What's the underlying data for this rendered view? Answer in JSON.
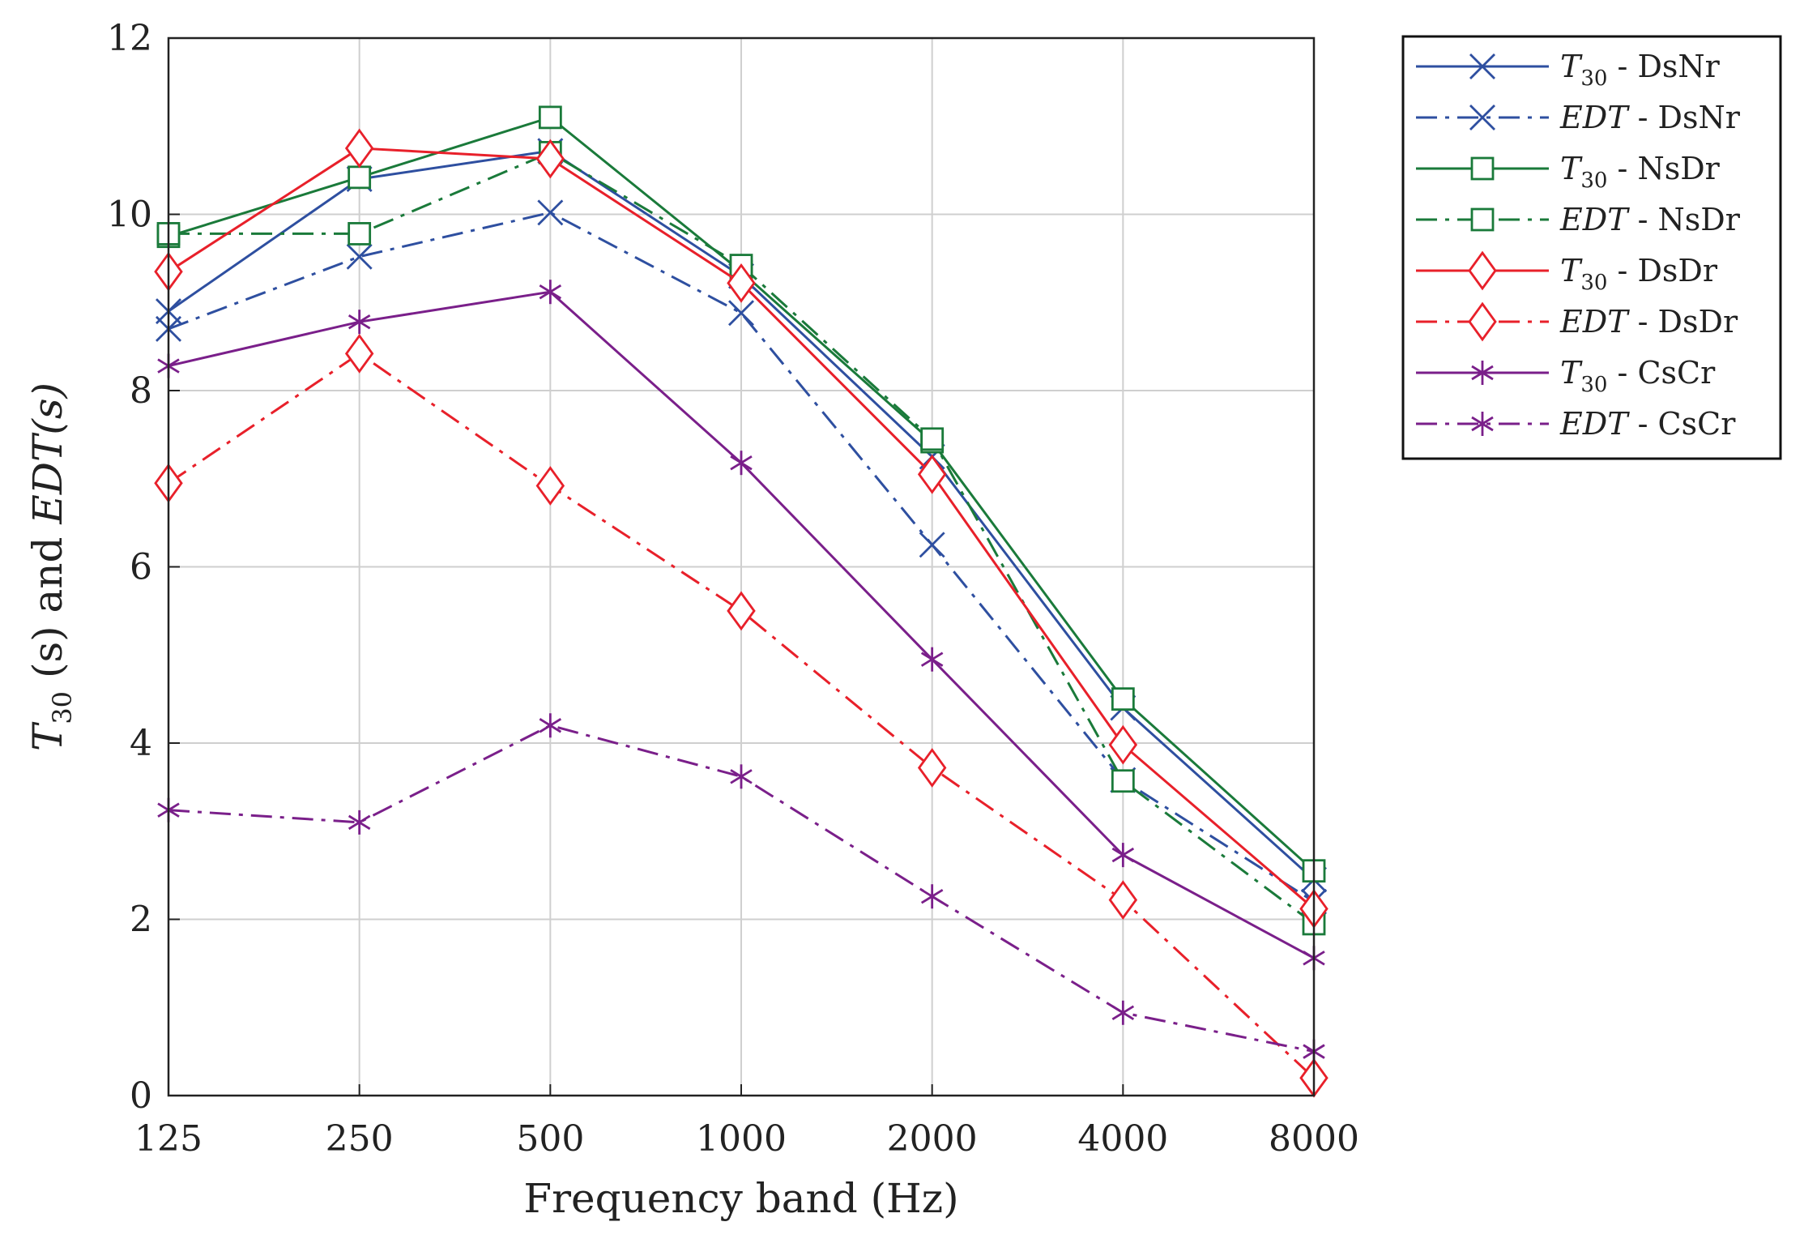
{
  "chart_data": {
    "type": "line",
    "title": "",
    "xlabel": "Frequency band (Hz)",
    "ylabel": {
      "main": "T",
      "sub": "30",
      "rest": " (s) and ",
      "edt": "EDT",
      "tail": "(s)"
    },
    "categories": [
      "125",
      "250",
      "500",
      "1000",
      "2000",
      "4000",
      "8000"
    ],
    "yticks": [
      "0",
      "2",
      "4",
      "6",
      "8",
      "10",
      "12"
    ],
    "ylim": [
      0,
      12
    ],
    "grid": true,
    "legend_position": "outside-top-right",
    "series": [
      {
        "metric": "T",
        "sub": "30",
        "room": " - DsNr",
        "color": "#2e4fa0",
        "dash": "solid",
        "marker": "x",
        "values": [
          8.9,
          10.4,
          10.72,
          9.3,
          7.25,
          4.4,
          2.45
        ]
      },
      {
        "metric": "EDT",
        "sub": "",
        "room": " - DsNr",
        "color": "#2e4fa0",
        "dash": "dashdot",
        "marker": "x",
        "values": [
          8.7,
          9.52,
          10.02,
          8.88,
          6.25,
          3.58,
          2.2
        ]
      },
      {
        "metric": "T",
        "sub": "30",
        "room": " - NsDr",
        "color": "#1a7a3a",
        "dash": "solid",
        "marker": "square",
        "values": [
          9.75,
          10.42,
          11.1,
          9.35,
          7.42,
          4.5,
          2.55
        ]
      },
      {
        "metric": "EDT",
        "sub": "",
        "room": " - NsDr",
        "color": "#1a7a3a",
        "dash": "dashdot",
        "marker": "square",
        "values": [
          9.78,
          9.78,
          10.7,
          9.42,
          7.45,
          3.57,
          1.95
        ]
      },
      {
        "metric": "T",
        "sub": "30",
        "room": " - DsDr",
        "color": "#e8202a",
        "dash": "solid",
        "marker": "diamond",
        "values": [
          9.35,
          10.75,
          10.63,
          9.22,
          7.05,
          3.98,
          2.12
        ]
      },
      {
        "metric": "EDT",
        "sub": "",
        "room": " - DsDr",
        "color": "#e8202a",
        "dash": "dashdot",
        "marker": "diamond",
        "values": [
          6.95,
          8.42,
          6.92,
          5.5,
          3.72,
          2.22,
          0.2
        ]
      },
      {
        "metric": "T",
        "sub": "30",
        "room": " - CsCr",
        "color": "#7a1f8a",
        "dash": "solid",
        "marker": "asterisk",
        "values": [
          8.28,
          8.78,
          9.12,
          7.18,
          4.95,
          2.73,
          1.56
        ]
      },
      {
        "metric": "EDT",
        "sub": "",
        "room": " - CsCr",
        "color": "#7a1f8a",
        "dash": "dashdot",
        "marker": "asterisk",
        "values": [
          3.24,
          3.1,
          4.2,
          3.62,
          2.26,
          0.94,
          0.5
        ]
      }
    ]
  }
}
